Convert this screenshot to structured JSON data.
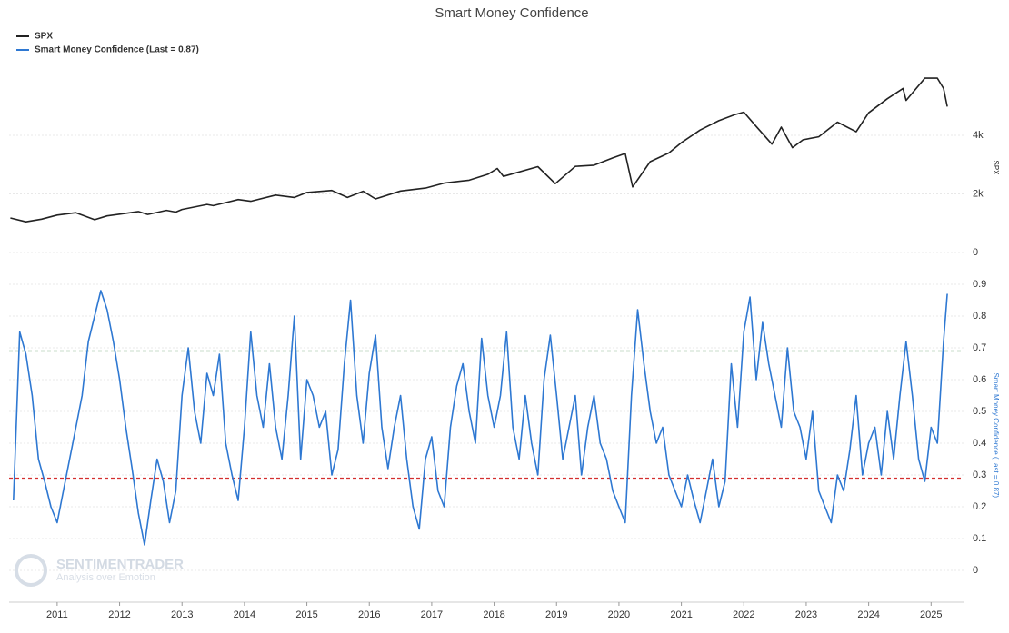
{
  "chart_data": [
    {
      "type": "line",
      "title": "Smart Money Confidence",
      "y_label": "SPX",
      "x": [
        2010.25,
        2010.5,
        2010.75,
        2011.0,
        2011.3,
        2011.6,
        2011.8,
        2012.0,
        2012.3,
        2012.45,
        2012.75,
        2012.9,
        2013.0,
        2013.4,
        2013.5,
        2013.9,
        2014.1,
        2014.5,
        2014.8,
        2015.0,
        2015.4,
        2015.65,
        2015.9,
        2016.1,
        2016.5,
        2016.9,
        2017.2,
        2017.6,
        2017.9,
        2018.05,
        2018.15,
        2018.7,
        2018.98,
        2019.3,
        2019.6,
        2019.9,
        2020.1,
        2020.22,
        2020.5,
        2020.8,
        2021.0,
        2021.3,
        2021.6,
        2021.85,
        2022.0,
        2022.2,
        2022.45,
        2022.6,
        2022.78,
        2022.95,
        2023.2,
        2023.5,
        2023.8,
        2024.0,
        2024.3,
        2024.55,
        2024.6,
        2024.9,
        2025.1,
        2025.2,
        2025.26
      ],
      "series": [
        {
          "name": "SPX",
          "color": "#222222",
          "values": [
            1180,
            1050,
            1140,
            1280,
            1360,
            1120,
            1250,
            1310,
            1400,
            1300,
            1440,
            1380,
            1470,
            1640,
            1600,
            1810,
            1750,
            1960,
            1880,
            2050,
            2120,
            1880,
            2090,
            1830,
            2100,
            2200,
            2370,
            2470,
            2670,
            2870,
            2600,
            2930,
            2350,
            2940,
            2980,
            3230,
            3380,
            2240,
            3100,
            3400,
            3750,
            4180,
            4500,
            4700,
            4790,
            4300,
            3700,
            4280,
            3580,
            3850,
            3950,
            4450,
            4120,
            4770,
            5250,
            5600,
            5190,
            5950,
            5950,
            5600,
            4980
          ]
        }
      ],
      "xlim": [
        2010.23,
        2025.52
      ],
      "ylim": [
        -200,
        6000
      ],
      "yticks": [
        0,
        {
          "value": 2000,
          "label": "2k"
        },
        {
          "value": 4000,
          "label": "4k"
        }
      ],
      "grid": true
    },
    {
      "type": "line",
      "y_label": "Smart Money Confidence (Last = 0.87)",
      "x": [
        2010.3,
        2010.4,
        2010.5,
        2010.6,
        2010.7,
        2010.8,
        2010.9,
        2011.0,
        2011.1,
        2011.2,
        2011.3,
        2011.4,
        2011.5,
        2011.6,
        2011.7,
        2011.8,
        2011.9,
        2012.0,
        2012.1,
        2012.2,
        2012.3,
        2012.4,
        2012.5,
        2012.6,
        2012.7,
        2012.8,
        2012.9,
        2013.0,
        2013.1,
        2013.2,
        2013.3,
        2013.4,
        2013.5,
        2013.6,
        2013.7,
        2013.8,
        2013.9,
        2014.0,
        2014.1,
        2014.2,
        2014.3,
        2014.4,
        2014.5,
        2014.6,
        2014.7,
        2014.8,
        2014.9,
        2015.0,
        2015.1,
        2015.2,
        2015.3,
        2015.4,
        2015.5,
        2015.6,
        2015.7,
        2015.8,
        2015.9,
        2016.0,
        2016.1,
        2016.2,
        2016.3,
        2016.4,
        2016.5,
        2016.6,
        2016.7,
        2016.8,
        2016.9,
        2017.0,
        2017.1,
        2017.2,
        2017.3,
        2017.4,
        2017.5,
        2017.6,
        2017.7,
        2017.8,
        2017.9,
        2018.0,
        2018.1,
        2018.2,
        2018.3,
        2018.4,
        2018.5,
        2018.6,
        2018.7,
        2018.8,
        2018.9,
        2019.0,
        2019.1,
        2019.2,
        2019.3,
        2019.4,
        2019.5,
        2019.6,
        2019.7,
        2019.8,
        2019.9,
        2020.0,
        2020.1,
        2020.2,
        2020.3,
        2020.4,
        2020.5,
        2020.6,
        2020.7,
        2020.8,
        2020.9,
        2021.0,
        2021.1,
        2021.2,
        2021.3,
        2021.4,
        2021.5,
        2021.6,
        2021.7,
        2021.8,
        2021.9,
        2022.0,
        2022.1,
        2022.2,
        2022.3,
        2022.4,
        2022.5,
        2022.6,
        2022.7,
        2022.8,
        2022.9,
        2023.0,
        2023.1,
        2023.2,
        2023.3,
        2023.4,
        2023.5,
        2023.6,
        2023.7,
        2023.8,
        2023.9,
        2024.0,
        2024.1,
        2024.2,
        2024.3,
        2024.4,
        2024.5,
        2024.6,
        2024.7,
        2024.8,
        2024.9,
        2025.0,
        2025.1,
        2025.2,
        2025.26
      ],
      "series": [
        {
          "name": "Smart Money Confidence (Last = 0.87)",
          "color": "#2e78d2",
          "values": [
            0.22,
            0.75,
            0.68,
            0.55,
            0.35,
            0.28,
            0.2,
            0.15,
            0.25,
            0.35,
            0.45,
            0.55,
            0.72,
            0.8,
            0.88,
            0.82,
            0.72,
            0.6,
            0.45,
            0.32,
            0.18,
            0.08,
            0.22,
            0.35,
            0.28,
            0.15,
            0.25,
            0.55,
            0.7,
            0.5,
            0.4,
            0.62,
            0.55,
            0.68,
            0.4,
            0.3,
            0.22,
            0.45,
            0.75,
            0.55,
            0.45,
            0.65,
            0.45,
            0.35,
            0.55,
            0.8,
            0.35,
            0.6,
            0.55,
            0.45,
            0.5,
            0.3,
            0.38,
            0.65,
            0.85,
            0.55,
            0.4,
            0.62,
            0.74,
            0.45,
            0.32,
            0.45,
            0.55,
            0.35,
            0.2,
            0.13,
            0.35,
            0.42,
            0.25,
            0.2,
            0.45,
            0.58,
            0.65,
            0.5,
            0.4,
            0.73,
            0.55,
            0.45,
            0.55,
            0.75,
            0.45,
            0.35,
            0.55,
            0.4,
            0.3,
            0.6,
            0.74,
            0.55,
            0.35,
            0.45,
            0.55,
            0.3,
            0.45,
            0.55,
            0.4,
            0.35,
            0.25,
            0.2,
            0.15,
            0.55,
            0.82,
            0.65,
            0.5,
            0.4,
            0.45,
            0.3,
            0.25,
            0.2,
            0.3,
            0.22,
            0.15,
            0.25,
            0.35,
            0.2,
            0.28,
            0.65,
            0.45,
            0.75,
            0.86,
            0.6,
            0.78,
            0.65,
            0.55,
            0.45,
            0.7,
            0.5,
            0.45,
            0.35,
            0.5,
            0.25,
            0.2,
            0.15,
            0.3,
            0.25,
            0.38,
            0.55,
            0.3,
            0.4,
            0.45,
            0.3,
            0.5,
            0.35,
            0.55,
            0.72,
            0.55,
            0.35,
            0.28,
            0.45,
            0.4,
            0.72,
            0.87
          ]
        }
      ],
      "reference_lines": [
        {
          "value": 0.69,
          "color": "#2e7d32"
        },
        {
          "value": 0.29,
          "color": "#d32f2f"
        }
      ],
      "watermark": [
        "SENTIMENTRADER",
        "Analysis over Emotion"
      ],
      "xlim": [
        2010.23,
        2025.52
      ],
      "ylim": [
        -0.1,
        0.95
      ],
      "xticks": [
        2011,
        2012,
        2013,
        2014,
        2015,
        2016,
        2017,
        2018,
        2019,
        2020,
        2021,
        2022,
        2023,
        2024,
        2025
      ],
      "yticks": [
        0,
        0.1,
        0.2,
        0.3,
        0.4,
        0.5,
        0.6,
        0.7,
        0.8,
        0.9
      ],
      "grid": true
    }
  ]
}
